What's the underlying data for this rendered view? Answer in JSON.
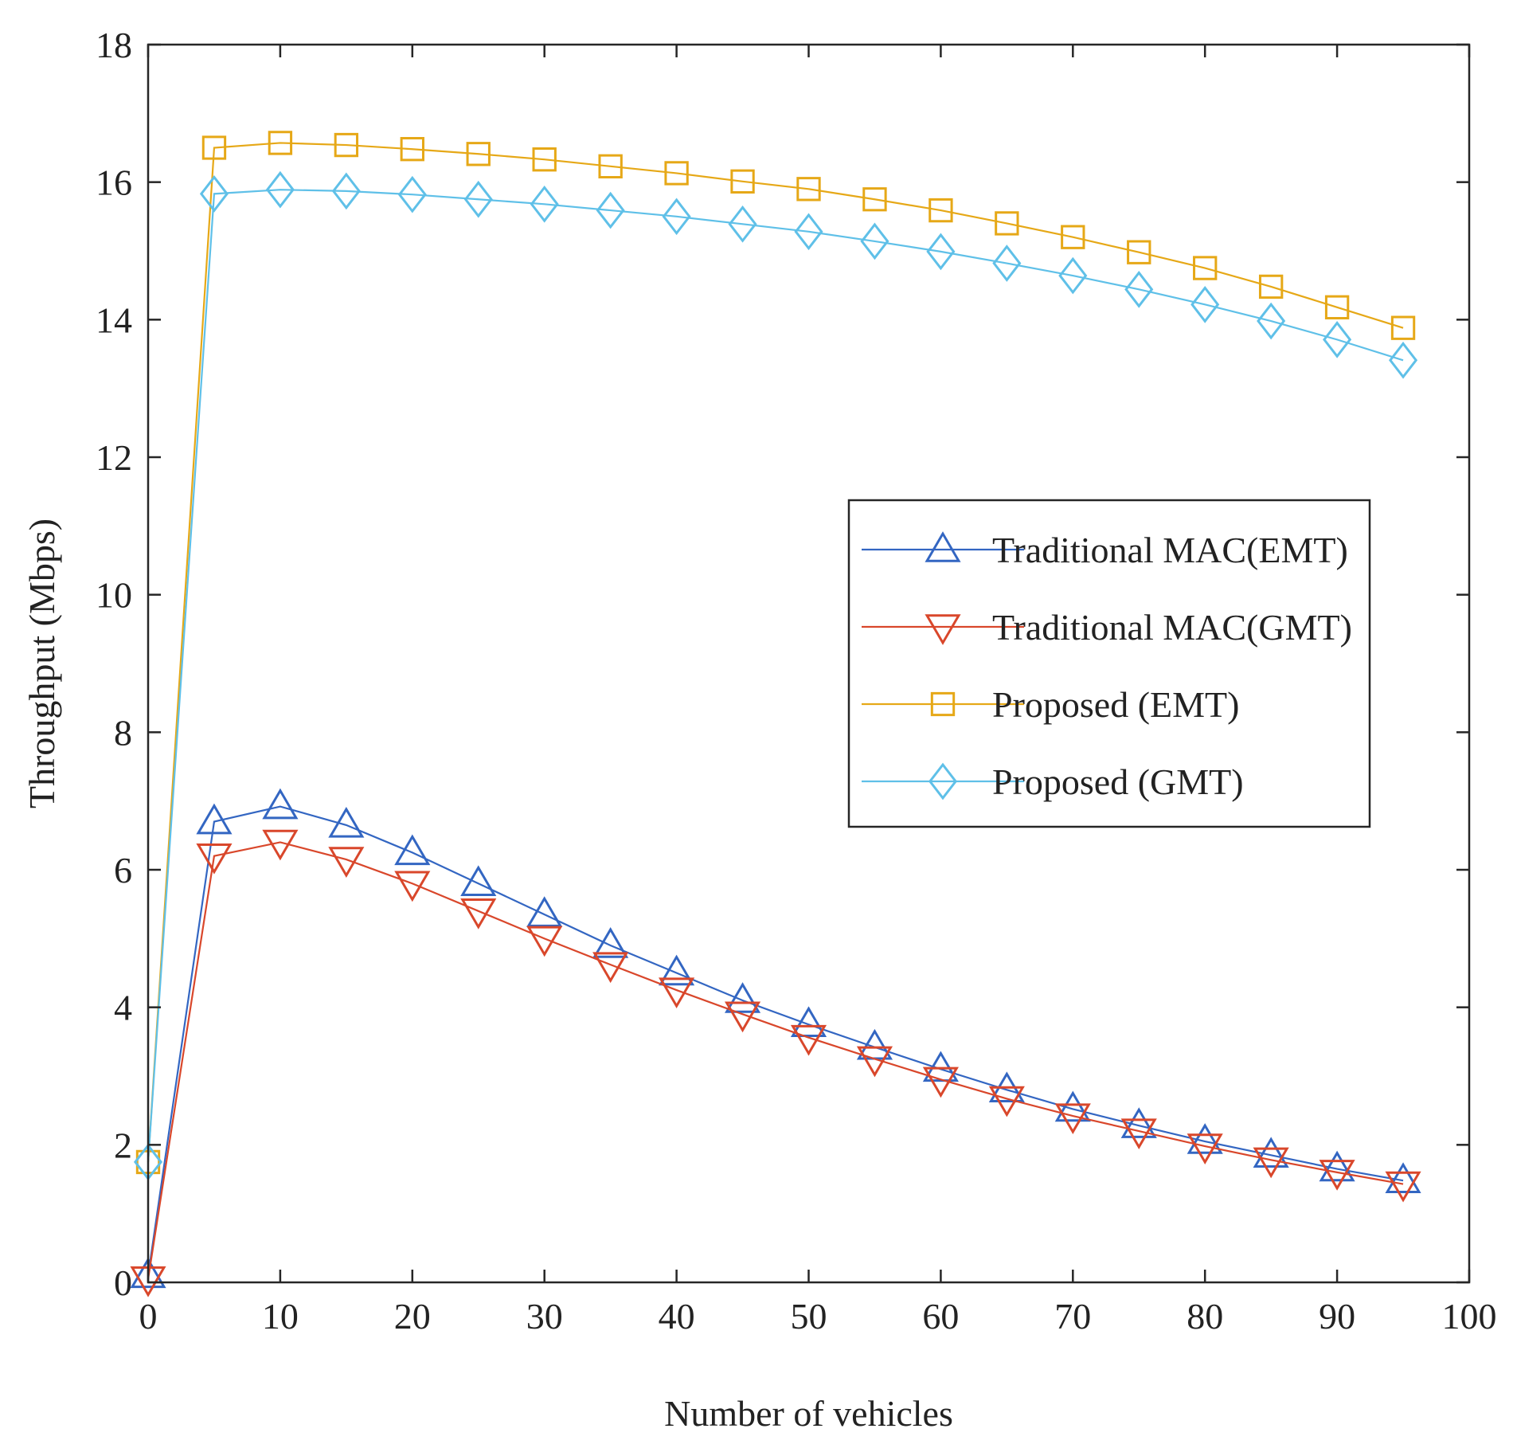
{
  "chart_data": {
    "type": "line",
    "title": "",
    "xlabel": "Number of vehicles",
    "ylabel": "Throughput (Mbps)",
    "xlim": [
      0,
      100
    ],
    "ylim": [
      0,
      18
    ],
    "xticks": [
      0,
      10,
      20,
      30,
      40,
      50,
      60,
      70,
      80,
      90,
      100
    ],
    "yticks": [
      0,
      2,
      4,
      6,
      8,
      10,
      12,
      14,
      16,
      18
    ],
    "grid": false,
    "legend_position": "right-middle",
    "x": [
      0,
      5,
      10,
      15,
      20,
      25,
      30,
      35,
      40,
      45,
      50,
      55,
      60,
      65,
      70,
      75,
      80,
      85,
      90,
      95
    ],
    "series": [
      {
        "name": "Traditional MAC(EMT)",
        "color": "#3366c2",
        "marker": "triangle-up",
        "values": [
          0.1,
          6.7,
          6.92,
          6.65,
          6.25,
          5.8,
          5.35,
          4.9,
          4.5,
          4.1,
          3.75,
          3.42,
          3.1,
          2.8,
          2.52,
          2.28,
          2.05,
          1.85,
          1.65,
          1.48
        ]
      },
      {
        "name": "Traditional MAC(GMT)",
        "color": "#d9472b",
        "marker": "triangle-down",
        "values": [
          0.05,
          6.2,
          6.4,
          6.15,
          5.8,
          5.4,
          5.0,
          4.62,
          4.25,
          3.9,
          3.56,
          3.25,
          2.95,
          2.67,
          2.42,
          2.2,
          1.98,
          1.78,
          1.6,
          1.43
        ]
      },
      {
        "name": "Proposed (EMT)",
        "color": "#e6a817",
        "marker": "square",
        "values": [
          1.75,
          16.5,
          16.57,
          16.54,
          16.48,
          16.41,
          16.33,
          16.23,
          16.13,
          16.01,
          15.9,
          15.75,
          15.59,
          15.4,
          15.2,
          14.98,
          14.75,
          14.48,
          14.18,
          13.88
        ]
      },
      {
        "name": "Proposed (GMT)",
        "color": "#5fc0e8",
        "marker": "diamond",
        "values": [
          1.75,
          15.83,
          15.89,
          15.87,
          15.82,
          15.75,
          15.68,
          15.59,
          15.5,
          15.39,
          15.28,
          15.14,
          14.99,
          14.82,
          14.64,
          14.44,
          14.22,
          13.98,
          13.71,
          13.41
        ]
      }
    ]
  }
}
